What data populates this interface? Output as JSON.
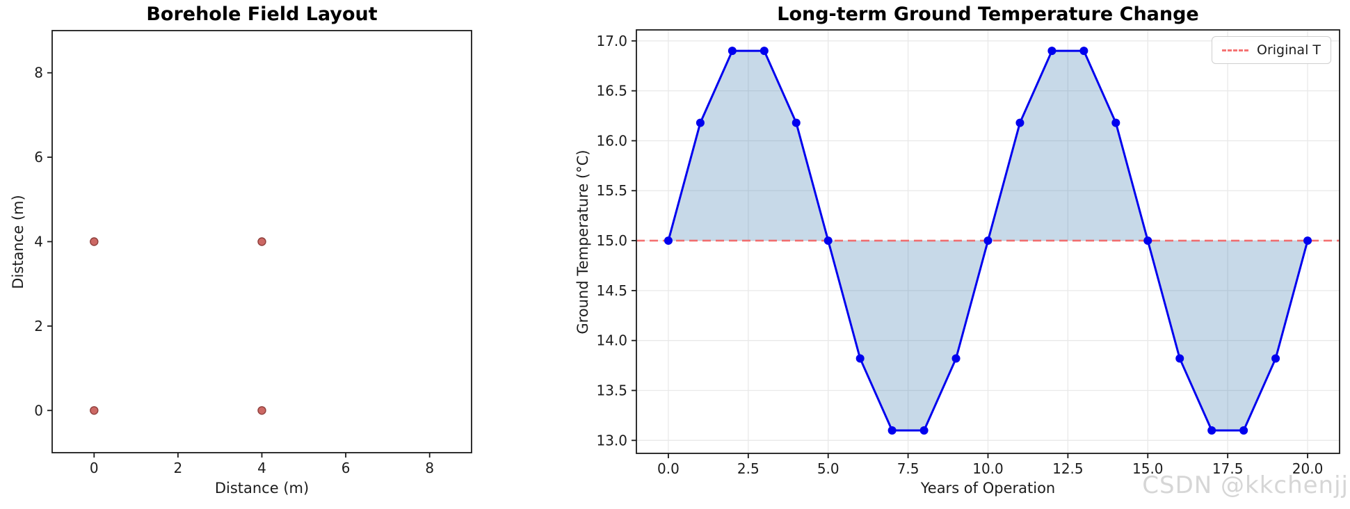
{
  "watermark": "CSDN @kkchenjj",
  "colors": {
    "scatter_fill": "#c9605c",
    "scatter_edge": "#8e3f3c",
    "line_blue": "#0000ee",
    "baseline_red": "#f45b5b",
    "fill_blue": "rgba(70,130,180,0.3)",
    "grid": "#e9e9e9",
    "spine": "#1a1a1a",
    "tick_text": "#1c1c1c",
    "watermark_gray": "#d6d6d6"
  },
  "chart_data": [
    {
      "type": "scatter",
      "title": "Borehole Field Layout",
      "xlabel": "Distance (m)",
      "ylabel": "Distance (m)",
      "points_x": [
        0,
        4,
        0,
        4
      ],
      "points_y": [
        0,
        0,
        4,
        4
      ],
      "xlim": [
        -1,
        9
      ],
      "ylim": [
        -1,
        9
      ],
      "xticks": [
        0,
        2,
        4,
        6,
        8
      ],
      "xtick_labels": [
        "0",
        "2",
        "4",
        "6",
        "8"
      ],
      "yticks": [
        0,
        2,
        4,
        6,
        8
      ],
      "ytick_labels": [
        "0",
        "2",
        "4",
        "6",
        "8"
      ],
      "grid": false,
      "legend_position": "none"
    },
    {
      "type": "line",
      "title": "Long-term Ground Temperature Change",
      "xlabel": "Years of Operation",
      "ylabel": "Ground Temperature (°C)",
      "x": [
        0,
        1,
        2,
        3,
        4,
        5,
        6,
        7,
        8,
        9,
        10,
        11,
        12,
        13,
        14,
        15,
        16,
        17,
        18,
        19,
        20
      ],
      "y": [
        15.0,
        16.18,
        16.9,
        16.9,
        16.18,
        15.0,
        13.82,
        13.1,
        13.1,
        13.82,
        15.0,
        16.18,
        16.9,
        16.9,
        16.18,
        15.0,
        13.82,
        13.1,
        13.1,
        13.82,
        15.0
      ],
      "baseline": 15.0,
      "legend": {
        "label": "Original T",
        "position": "upper right"
      },
      "xlim": [
        -1,
        21
      ],
      "ylim": [
        12.87,
        17.11
      ],
      "xticks": [
        0,
        2.5,
        5,
        7.5,
        10,
        12.5,
        15,
        17.5,
        20
      ],
      "xtick_labels": [
        "0.0",
        "2.5",
        "5.0",
        "7.5",
        "10.0",
        "12.5",
        "15.0",
        "17.5",
        "20.0"
      ],
      "yticks": [
        13,
        13.5,
        14,
        14.5,
        15,
        15.5,
        16,
        16.5,
        17
      ],
      "ytick_labels": [
        "13.0",
        "13.5",
        "14.0",
        "14.5",
        "15.0",
        "15.5",
        "16.0",
        "16.5",
        "17.0"
      ],
      "grid": true
    }
  ]
}
